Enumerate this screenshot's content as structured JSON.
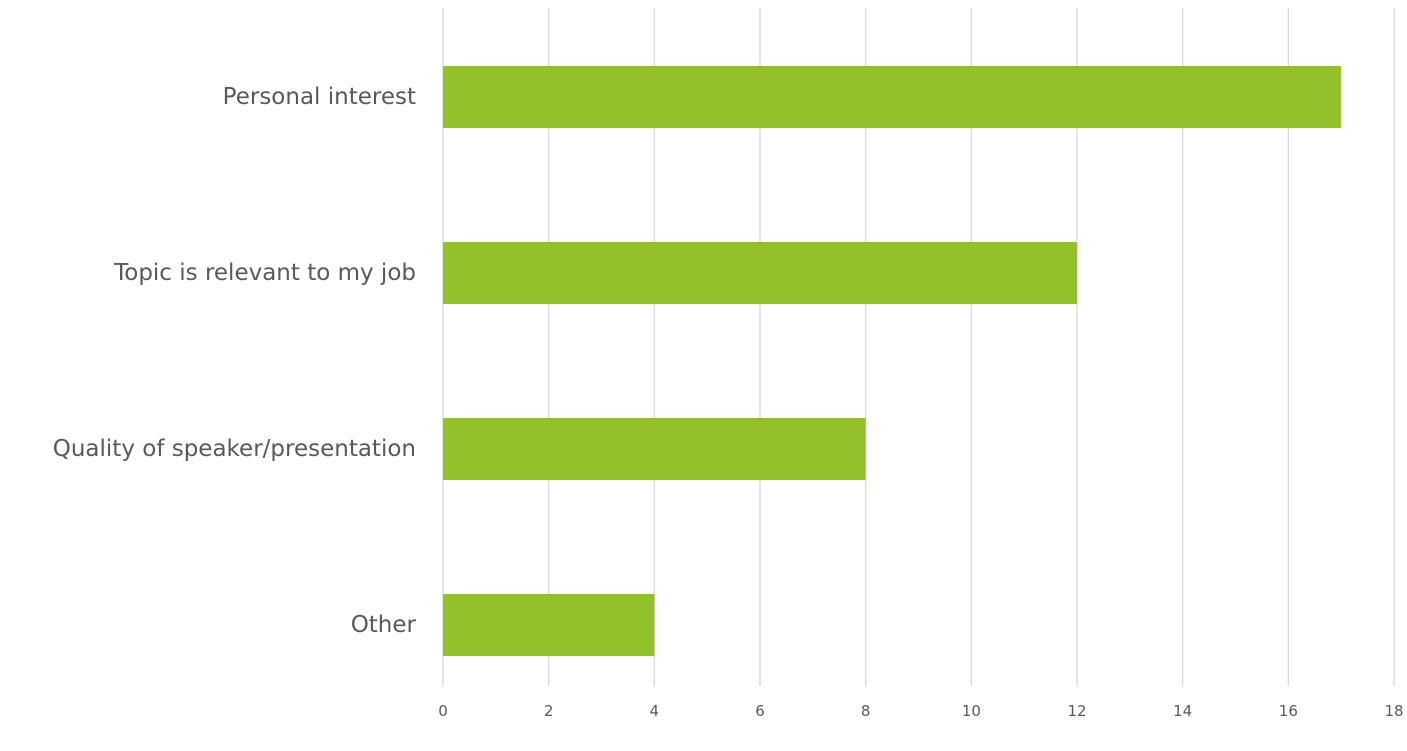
{
  "chart_data": {
    "type": "bar",
    "orientation": "horizontal",
    "categories": [
      "Personal interest",
      "Topic is relevant to my job",
      "Quality of speaker/presentation",
      "Other"
    ],
    "values": [
      17,
      12,
      8,
      4
    ],
    "xlim": [
      0,
      18
    ],
    "xticks": [
      0,
      2,
      4,
      6,
      8,
      10,
      12,
      14,
      16,
      18
    ],
    "xtick_labels": [
      "0",
      "2",
      "4",
      "6",
      "8",
      "10",
      "12",
      "14",
      "16",
      "18"
    ],
    "title": "",
    "xlabel": "",
    "ylabel": "",
    "grid": "vertical",
    "legend": "none",
    "colors": {
      "bar": "#92c12a",
      "grid": "#d9d9d9",
      "text": "#595959"
    }
  }
}
